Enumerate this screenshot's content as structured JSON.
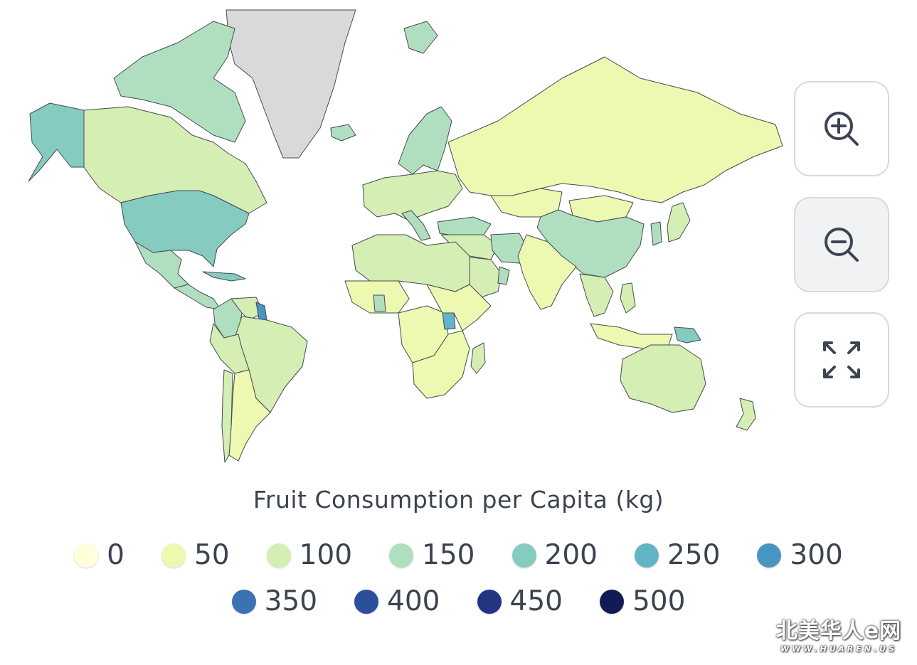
{
  "map": {
    "legend_title": "Fruit Consumption per Capita (kg)",
    "no_data_color": "#d9d9d9",
    "border_color": "#444a52",
    "ocean_color": "#ffffff",
    "legend": [
      {
        "label": "0",
        "color": "#ffffd9"
      },
      {
        "label": "50",
        "color": "#edf8b1"
      },
      {
        "label": "100",
        "color": "#d4eeb3"
      },
      {
        "label": "150",
        "color": "#b0dfc0"
      },
      {
        "label": "200",
        "color": "#86cbbf"
      },
      {
        "label": "250",
        "color": "#62b5c6"
      },
      {
        "label": "300",
        "color": "#4795c1"
      },
      {
        "label": "350",
        "color": "#3a72b4"
      },
      {
        "label": "400",
        "color": "#2c4f9c"
      },
      {
        "label": "450",
        "color": "#223582"
      },
      {
        "label": "500",
        "color": "#111c55"
      }
    ],
    "regions": [
      {
        "name": "Greenland",
        "value": null
      },
      {
        "name": "Alaska",
        "value": 190
      },
      {
        "name": "Canada",
        "value": 120
      },
      {
        "name": "Canadian Arctic",
        "value": 150
      },
      {
        "name": "United States",
        "value": 195
      },
      {
        "name": "Mexico",
        "value": 150
      },
      {
        "name": "Central America",
        "value": 130
      },
      {
        "name": "Caribbean",
        "value": 220
      },
      {
        "name": "Colombia",
        "value": 150
      },
      {
        "name": "Venezuela",
        "value": 120
      },
      {
        "name": "Guyana",
        "value": 300
      },
      {
        "name": "Brazil",
        "value": 90
      },
      {
        "name": "Peru",
        "value": 100
      },
      {
        "name": "Argentina",
        "value": 70
      },
      {
        "name": "Chile",
        "value": 90
      },
      {
        "name": "Iceland",
        "value": 130
      },
      {
        "name": "Svalbard",
        "value": 150
      },
      {
        "name": "Scandinavia",
        "value": 140
      },
      {
        "name": "Europe",
        "value": 110
      },
      {
        "name": "Italy",
        "value": 150
      },
      {
        "name": "Turkey",
        "value": 160
      },
      {
        "name": "Russia",
        "value": 55
      },
      {
        "name": "Kazakhstan",
        "value": 60
      },
      {
        "name": "Mongolia",
        "value": 30
      },
      {
        "name": "China",
        "value": 135
      },
      {
        "name": "Japan",
        "value": 80
      },
      {
        "name": "Korea",
        "value": 130
      },
      {
        "name": "Middle East",
        "value": 110
      },
      {
        "name": "Iran",
        "value": 150
      },
      {
        "name": "Arabia",
        "value": 90
      },
      {
        "name": "Oman",
        "value": 150
      },
      {
        "name": "South Asia",
        "value": 60
      },
      {
        "name": "Southeast Asia",
        "value": 100
      },
      {
        "name": "Philippines",
        "value": 100
      },
      {
        "name": "Indonesia",
        "value": 60
      },
      {
        "name": "Papua New Guinea",
        "value": 220
      },
      {
        "name": "Australia",
        "value": 90
      },
      {
        "name": "New Zealand",
        "value": 110
      },
      {
        "name": "North Africa",
        "value": 90
      },
      {
        "name": "West Africa",
        "value": 60
      },
      {
        "name": "Ghana",
        "value": 160
      },
      {
        "name": "Central Africa",
        "value": 70
      },
      {
        "name": "Uganda",
        "value": 250
      },
      {
        "name": "East Africa",
        "value": 40
      },
      {
        "name": "Southern Africa",
        "value": 60
      },
      {
        "name": "Madagascar",
        "value": 80
      }
    ]
  },
  "controls": {
    "zoom_in_icon": "zoom-in-icon",
    "zoom_out_icon": "zoom-out-icon",
    "fullscreen_icon": "expand-icon"
  },
  "badge": {
    "main": "北美华人e网",
    "sub": "WWW.HUAREN.US"
  }
}
